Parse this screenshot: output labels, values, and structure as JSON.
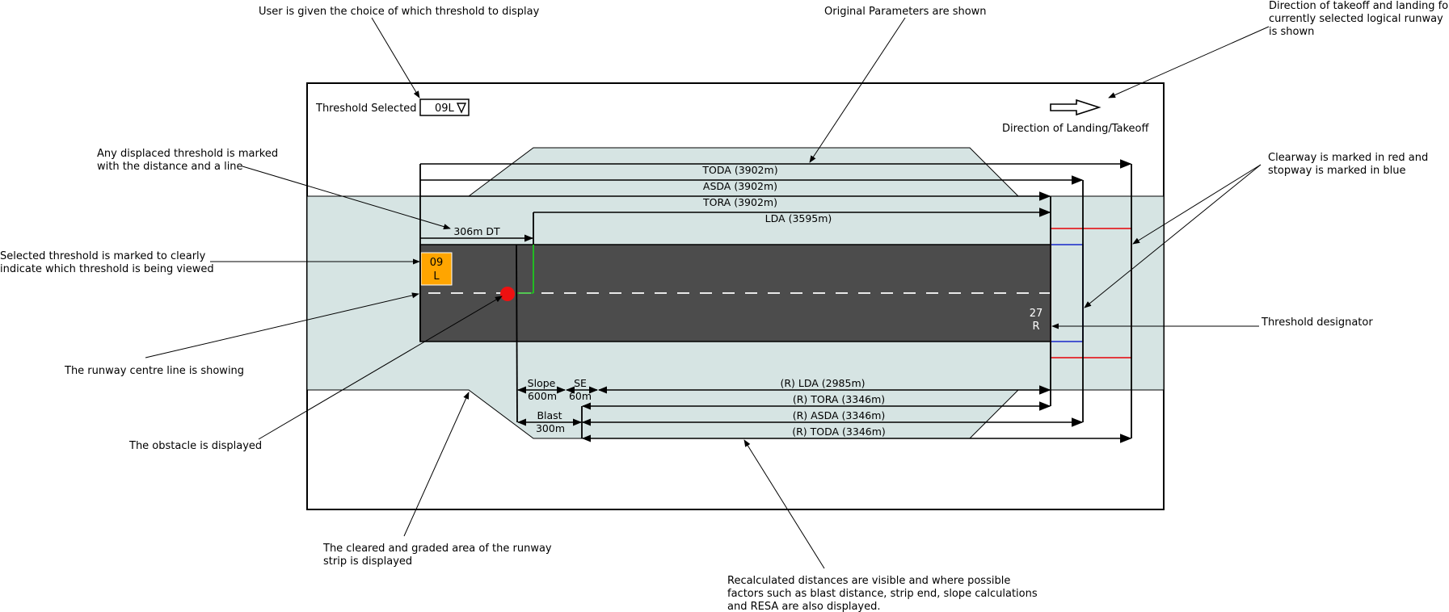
{
  "colors": {
    "strip": "#d6e4e3",
    "runway": "#4c4c4c",
    "centreline": "#e8e8e8",
    "clearway": "#e3272b",
    "stopway": "#2233cc",
    "displaced_line": "#22bb22",
    "obstacle": "#ee1111",
    "threshold_badge": "#ffa500"
  },
  "ui": {
    "threshold_label": "Threshold Selected",
    "threshold_value": "09L",
    "dropdown_icon": "triangle-down-icon",
    "direction_icon": "arrow-right-icon",
    "direction_label": "Direction of Landing/Takeoff",
    "badge_left": [
      "09",
      "L"
    ],
    "badge_right": [
      "27",
      "R"
    ],
    "displaced_threshold": "306m DT"
  },
  "original": {
    "toda": "TODA (3902m)",
    "asda": "ASDA (3902m)",
    "tora": "TORA (3902m)",
    "lda": "LDA (3595m)"
  },
  "recalculated": {
    "slope": [
      "Slope",
      "600m"
    ],
    "se": [
      "SE",
      "60m"
    ],
    "blast": [
      "Blast",
      "300m"
    ],
    "lda": "(R) LDA (2985m)",
    "tora": "(R) TORA (3346m)",
    "asda": "(R) ASDA (3346m)",
    "toda": "(R) TODA (3346m)"
  },
  "annotations": {
    "threshold_choice": [
      "User is given the choice of which threshold to display"
    ],
    "original_params": [
      "Original Parameters are shown"
    ],
    "direction": [
      "Direction of takeoff and landing for",
      "currently selected logical runway",
      "is shown"
    ],
    "displaced": [
      "Any displaced threshold is marked",
      "with the distance and a line"
    ],
    "clearway": [
      "Clearway is marked in red and",
      "stopway is marked in blue"
    ],
    "selected_threshold": [
      "Selected threshold is marked to clearly",
      "indicate which threshold is being viewed"
    ],
    "threshold_designator": [
      "Threshold designator"
    ],
    "centreline": [
      "The runway centre line is showing"
    ],
    "obstacle": [
      "The obstacle is displayed"
    ],
    "cleared_area": [
      "The cleared and graded area of the runway",
      "strip is displayed"
    ],
    "recalculated": [
      "Recalculated distances are visible and where possible",
      "factors such as blast distance, strip end, slope calculations",
      "and RESA are also displayed."
    ]
  }
}
